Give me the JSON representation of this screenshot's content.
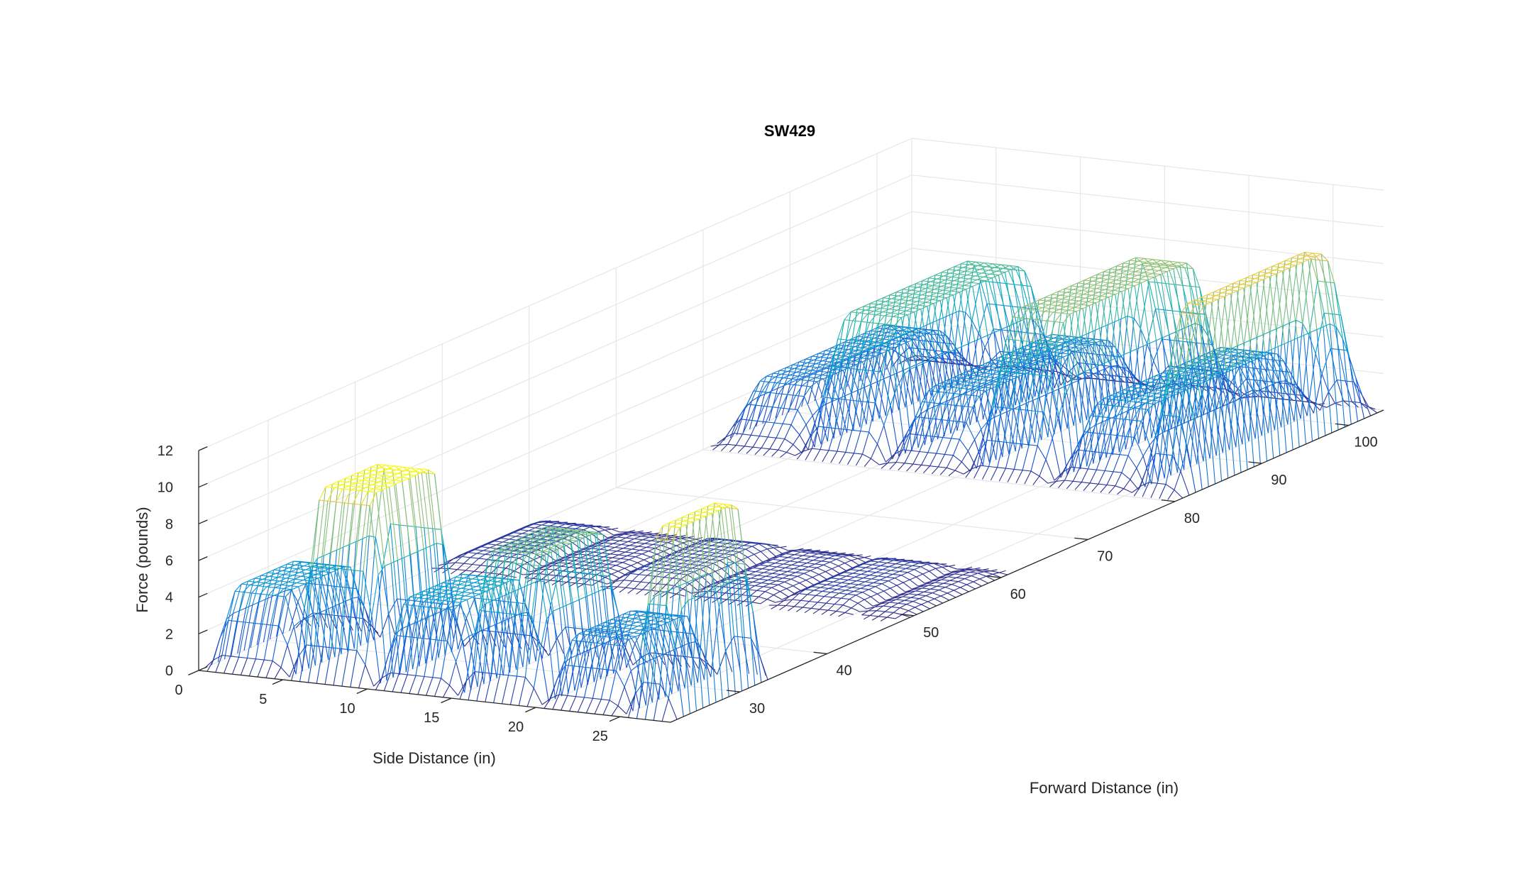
{
  "chart_data": {
    "type": "mesh3d",
    "title": "SW429",
    "xlabel": "Side Distance (in)",
    "ylabel": "Forward Distance (in)",
    "zlabel": "Force (pounds)",
    "xlim": [
      0,
      28
    ],
    "ylim": [
      22,
      104
    ],
    "zlim": [
      0,
      12
    ],
    "xticks": [
      "0",
      "5",
      "10",
      "15",
      "20",
      "25"
    ],
    "yticks": [
      "30",
      "40",
      "50",
      "60",
      "70",
      "80",
      "90",
      "100"
    ],
    "zticks": [
      "0",
      "2",
      "4",
      "6",
      "8",
      "10",
      "12"
    ],
    "grid": true,
    "colormap": "parula",
    "rows": [
      {
        "row": "front",
        "y_range": [
          22,
          34
        ],
        "pads": [
          {
            "x_range": [
              0,
              5
            ],
            "peak_force": 4.2
          },
          {
            "x_range": [
              5,
              10
            ],
            "peak_force": 10.0
          },
          {
            "x_range": [
              10,
              15
            ],
            "peak_force": 4.5
          },
          {
            "x_range": [
              15,
              20
            ],
            "peak_force": 7.6
          },
          {
            "x_range": [
              20,
              25
            ],
            "peak_force": 3.5
          },
          {
            "x_range": [
              25,
              28
            ],
            "peak_force": 9.9
          }
        ]
      },
      {
        "row": "middle",
        "y_range": [
          48,
          62
        ],
        "pads": [
          {
            "x_range": [
              0,
              5
            ],
            "peak_force": 0.5
          },
          {
            "x_range": [
              5,
              10
            ],
            "peak_force": 0.3
          },
          {
            "x_range": [
              10,
              15
            ],
            "peak_force": 0.6
          },
          {
            "x_range": [
              15,
              20
            ],
            "peak_force": 0.4
          },
          {
            "x_range": [
              20,
              25
            ],
            "peak_force": 0.5
          },
          {
            "x_range": [
              25,
              28
            ],
            "peak_force": 0.3
          }
        ]
      },
      {
        "row": "back",
        "y_range": [
          80,
          104
        ],
        "pads": [
          {
            "x_range": [
              0,
              5
            ],
            "peak_force": 3.0
          },
          {
            "x_range": [
              5,
              10
            ],
            "peak_force": 7.0
          },
          {
            "x_range": [
              10,
              15
            ],
            "peak_force": 3.5
          },
          {
            "x_range": [
              15,
              20
            ],
            "peak_force": 8.2
          },
          {
            "x_range": [
              20,
              25
            ],
            "peak_force": 3.8
          },
          {
            "x_range": [
              25,
              28
            ],
            "peak_force": 9.5
          }
        ]
      }
    ]
  }
}
